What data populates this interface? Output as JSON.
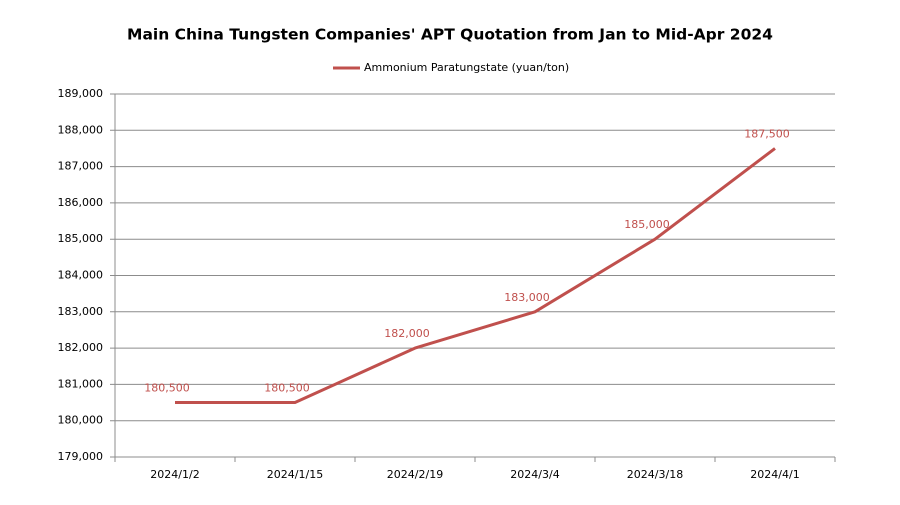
{
  "chart_data": {
    "type": "line",
    "title": "Main China Tungsten Companies' APT Quotation from Jan to Mid-Apr 2024",
    "categories": [
      "2024/1/2",
      "2024/1/15",
      "2024/2/19",
      "2024/3/4",
      "2024/3/18",
      "2024/4/1"
    ],
    "series": [
      {
        "name": "Ammonium Paratungstate (yuan/ton)",
        "color": "#c0504d",
        "values": [
          180500,
          180500,
          182000,
          183000,
          185000,
          187500
        ],
        "value_labels": [
          "180,500",
          "180,500",
          "182,000",
          "183,000",
          "185,000",
          "187,500"
        ]
      }
    ],
    "ylim": [
      179000,
      189000
    ],
    "yticks": [
      {
        "value": 179000,
        "label": "179,000"
      },
      {
        "value": 180000,
        "label": "180,000"
      },
      {
        "value": 181000,
        "label": "181,000"
      },
      {
        "value": 182000,
        "label": "182,000"
      },
      {
        "value": 183000,
        "label": "183,000"
      },
      {
        "value": 184000,
        "label": "184,000"
      },
      {
        "value": 185000,
        "label": "185,000"
      },
      {
        "value": 186000,
        "label": "186,000"
      },
      {
        "value": 187000,
        "label": "187,000"
      },
      {
        "value": 188000,
        "label": "188,000"
      },
      {
        "value": 189000,
        "label": "189,000"
      }
    ],
    "grid": true,
    "legend": "top"
  }
}
